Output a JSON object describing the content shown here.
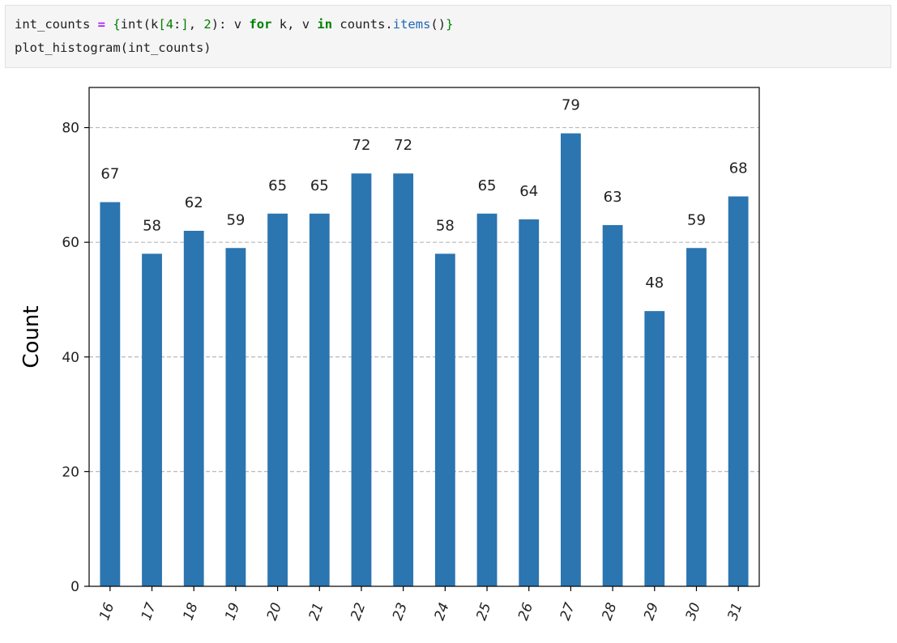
{
  "code_cell": {
    "line1_tokens": [
      {
        "t": "int_counts ",
        "c": ""
      },
      {
        "t": "=",
        "c": "tok-op"
      },
      {
        "t": " ",
        "c": ""
      },
      {
        "t": "{",
        "c": "tok-br"
      },
      {
        "t": "int(k",
        "c": ""
      },
      {
        "t": "[",
        "c": "tok-br"
      },
      {
        "t": "4",
        "c": "tok-num"
      },
      {
        "t": ":",
        "c": ""
      },
      {
        "t": "]",
        "c": "tok-br"
      },
      {
        "t": ", ",
        "c": ""
      },
      {
        "t": "2",
        "c": "tok-num"
      },
      {
        "t": "): v ",
        "c": ""
      },
      {
        "t": "for",
        "c": "tok-kw"
      },
      {
        "t": " k, v ",
        "c": ""
      },
      {
        "t": "in",
        "c": "tok-kw"
      },
      {
        "t": " counts.",
        "c": ""
      },
      {
        "t": "items",
        "c": "tok-attr"
      },
      {
        "t": "()",
        "c": ""
      },
      {
        "t": "}",
        "c": "tok-br"
      }
    ],
    "line2": "plot_histogram(int_counts)"
  },
  "chart_data": {
    "type": "bar",
    "categories": [
      "16",
      "17",
      "18",
      "19",
      "20",
      "21",
      "22",
      "23",
      "24",
      "25",
      "26",
      "27",
      "28",
      "29",
      "30",
      "31"
    ],
    "values": [
      67,
      58,
      62,
      59,
      65,
      65,
      72,
      72,
      58,
      65,
      64,
      79,
      63,
      48,
      59,
      68
    ],
    "data_labels": [
      "67",
      "58",
      "62",
      "59",
      "65",
      "65",
      "72",
      "72",
      "58",
      "65",
      "64",
      "79",
      "63",
      "48",
      "59",
      "68"
    ],
    "ylabel": "Count",
    "xlabel": "",
    "ylim": [
      0,
      87
    ],
    "yticks": [
      0,
      20,
      40,
      60,
      80
    ],
    "ytick_labels": [
      "0",
      "20",
      "40",
      "60",
      "80"
    ],
    "grid": "horizontal dashed",
    "bar_color": "#2b75b0",
    "grid_color": "#b8b8b8"
  }
}
